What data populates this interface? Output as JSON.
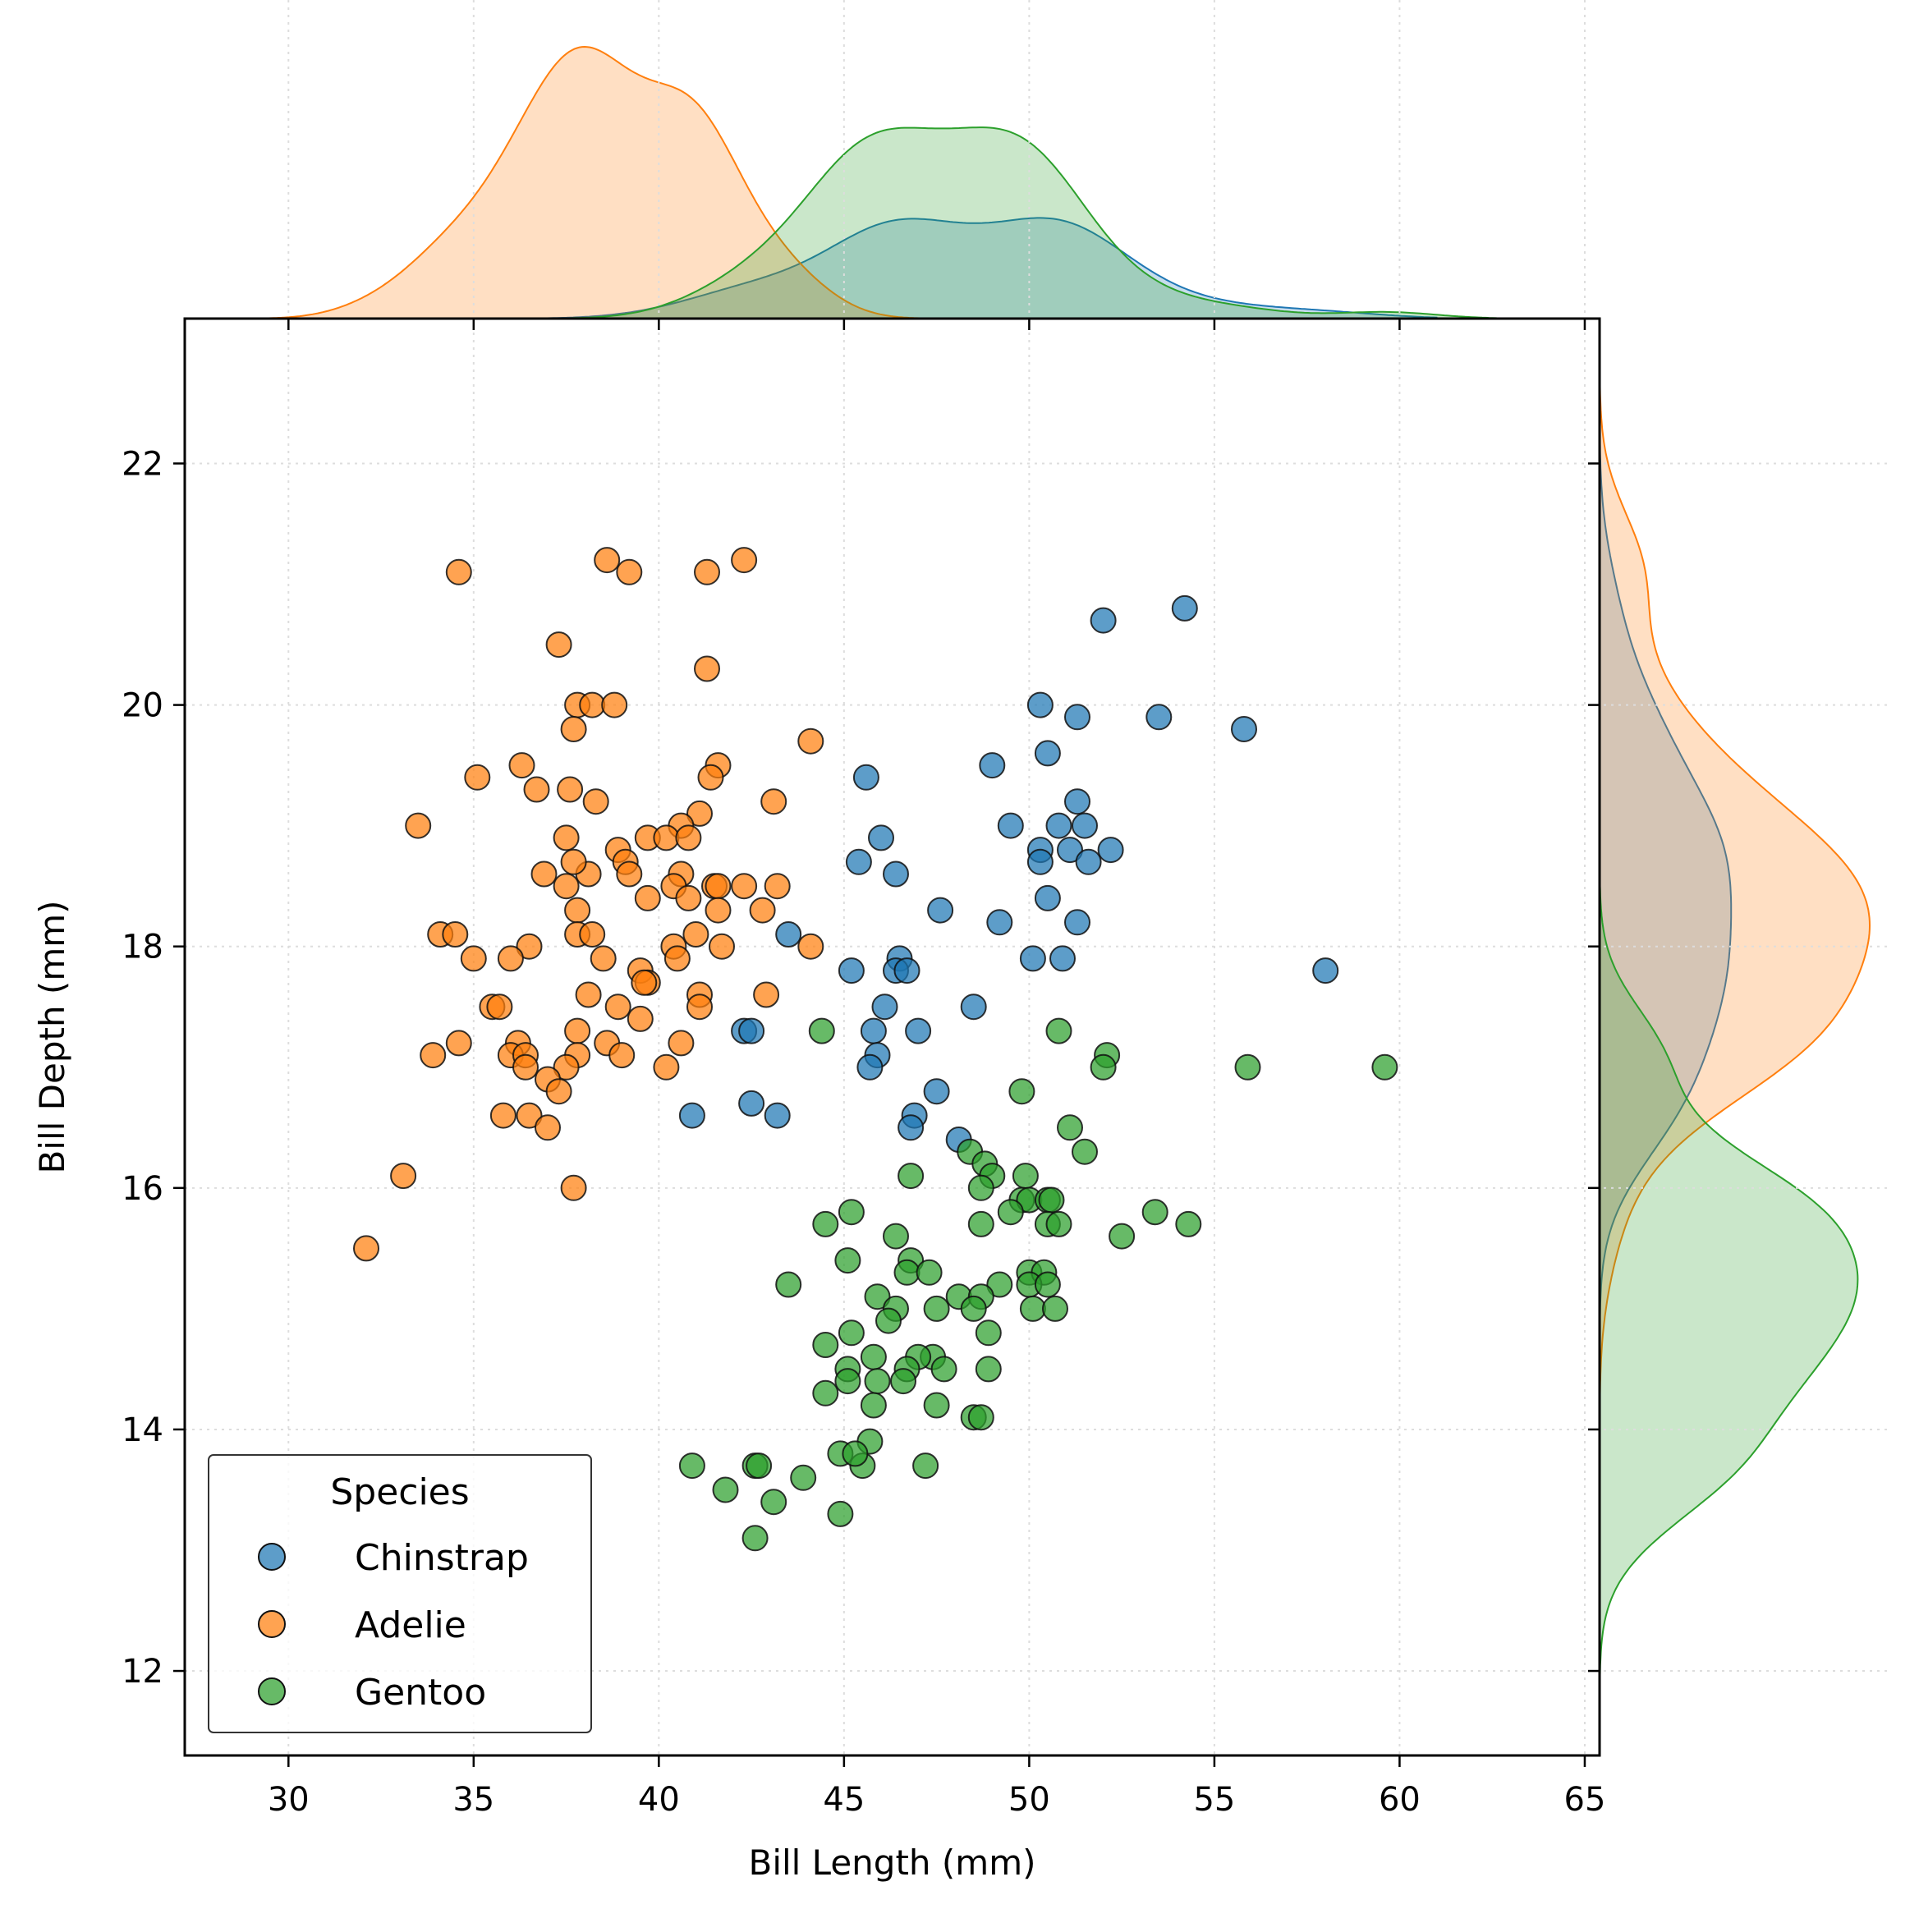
{
  "chart_data": {
    "type": "scatter",
    "subtype": "jointplot-with-marginal-kde",
    "title": "",
    "xlabel": "Bill Length (mm)",
    "ylabel": "Bill Depth (mm)",
    "xlim": [
      27.2,
      65.4
    ],
    "ylim": [
      11.3,
      23.2
    ],
    "xticks": [
      30,
      35,
      40,
      45,
      50,
      55,
      60,
      65
    ],
    "yticks": [
      12,
      14,
      16,
      18,
      20,
      22
    ],
    "xtick_labels": [
      "30",
      "35",
      "40",
      "45",
      "50",
      "55",
      "60",
      "65"
    ],
    "ytick_labels": [
      "12",
      "14",
      "16",
      "18",
      "20",
      "22"
    ],
    "grid": true,
    "legend": {
      "title": "Species",
      "placement": "lower-left"
    },
    "marginals": "kde (filled, per species)",
    "series": [
      {
        "name": "Chinstrap",
        "color": "#1f77b4",
        "points": [
          [
            52.0,
            20.7
          ],
          [
            54.2,
            20.8
          ],
          [
            50.3,
            20.0
          ],
          [
            51.3,
            19.9
          ],
          [
            53.5,
            19.9
          ],
          [
            55.8,
            19.8
          ],
          [
            50.5,
            19.6
          ],
          [
            49.0,
            19.5
          ],
          [
            45.6,
            19.4
          ],
          [
            51.3,
            19.2
          ],
          [
            49.5,
            19.0
          ],
          [
            50.8,
            19.0
          ],
          [
            51.5,
            19.0
          ],
          [
            46.0,
            18.9
          ],
          [
            50.3,
            18.8
          ],
          [
            51.1,
            18.8
          ],
          [
            52.2,
            18.8
          ],
          [
            45.4,
            18.7
          ],
          [
            50.3,
            18.7
          ],
          [
            51.6,
            18.7
          ],
          [
            46.4,
            18.6
          ],
          [
            50.5,
            18.4
          ],
          [
            47.6,
            18.3
          ],
          [
            49.2,
            18.2
          ],
          [
            51.3,
            18.2
          ],
          [
            43.5,
            18.1
          ],
          [
            50.1,
            17.9
          ],
          [
            50.9,
            17.9
          ],
          [
            46.5,
            17.9
          ],
          [
            45.2,
            17.8
          ],
          [
            46.4,
            17.8
          ],
          [
            46.7,
            17.8
          ],
          [
            58.0,
            17.8
          ],
          [
            46.1,
            17.5
          ],
          [
            48.5,
            17.5
          ],
          [
            42.3,
            17.3
          ],
          [
            42.5,
            17.3
          ],
          [
            45.8,
            17.3
          ],
          [
            47.0,
            17.3
          ],
          [
            45.9,
            17.1
          ],
          [
            45.7,
            17.0
          ],
          [
            47.5,
            16.8
          ],
          [
            42.5,
            16.7
          ],
          [
            40.9,
            16.6
          ],
          [
            43.2,
            16.6
          ],
          [
            46.9,
            16.6
          ],
          [
            46.8,
            16.5
          ],
          [
            48.1,
            16.4
          ]
        ]
      },
      {
        "name": "Adelie",
        "color": "#ff7f0e",
        "points": [
          [
            34.6,
            21.1
          ],
          [
            38.6,
            21.2
          ],
          [
            39.2,
            21.1
          ],
          [
            41.3,
            21.1
          ],
          [
            42.3,
            21.2
          ],
          [
            37.3,
            20.5
          ],
          [
            41.3,
            20.3
          ],
          [
            37.8,
            20.0
          ],
          [
            38.2,
            20.0
          ],
          [
            38.8,
            20.0
          ],
          [
            37.7,
            19.8
          ],
          [
            44.1,
            19.7
          ],
          [
            41.6,
            19.5
          ],
          [
            36.3,
            19.5
          ],
          [
            35.1,
            19.4
          ],
          [
            41.4,
            19.4
          ],
          [
            36.7,
            19.3
          ],
          [
            37.6,
            19.3
          ],
          [
            43.1,
            19.2
          ],
          [
            38.3,
            19.2
          ],
          [
            33.5,
            19.0
          ],
          [
            41.1,
            19.1
          ],
          [
            40.6,
            19.0
          ],
          [
            38.9,
            18.8
          ],
          [
            39.7,
            18.9
          ],
          [
            40.2,
            18.9
          ],
          [
            40.8,
            18.9
          ],
          [
            39.1,
            18.7
          ],
          [
            36.9,
            18.6
          ],
          [
            38.1,
            18.6
          ],
          [
            40.6,
            18.6
          ],
          [
            39.2,
            18.6
          ],
          [
            37.5,
            18.9
          ],
          [
            37.7,
            18.7
          ],
          [
            37.5,
            18.5
          ],
          [
            40.4,
            18.5
          ],
          [
            41.5,
            18.5
          ],
          [
            41.6,
            18.5
          ],
          [
            42.3,
            18.5
          ],
          [
            43.2,
            18.5
          ],
          [
            40.8,
            18.4
          ],
          [
            39.7,
            18.4
          ],
          [
            37.8,
            18.3
          ],
          [
            41.6,
            18.3
          ],
          [
            42.8,
            18.3
          ],
          [
            34.1,
            18.1
          ],
          [
            34.5,
            18.1
          ],
          [
            37.8,
            18.1
          ],
          [
            38.2,
            18.1
          ],
          [
            41.0,
            18.1
          ],
          [
            36.5,
            18.0
          ],
          [
            40.4,
            18.0
          ],
          [
            44.1,
            18.0
          ],
          [
            36.0,
            17.9
          ],
          [
            38.5,
            17.9
          ],
          [
            40.5,
            17.9
          ],
          [
            35.0,
            17.9
          ],
          [
            41.7,
            18.0
          ],
          [
            39.5,
            17.8
          ],
          [
            39.7,
            17.7
          ],
          [
            39.6,
            17.7
          ],
          [
            38.1,
            17.6
          ],
          [
            41.1,
            17.6
          ],
          [
            42.9,
            17.6
          ],
          [
            35.5,
            17.5
          ],
          [
            35.7,
            17.5
          ],
          [
            38.9,
            17.5
          ],
          [
            41.1,
            17.5
          ],
          [
            39.5,
            17.4
          ],
          [
            37.8,
            17.3
          ],
          [
            34.6,
            17.2
          ],
          [
            36.2,
            17.2
          ],
          [
            38.6,
            17.2
          ],
          [
            40.6,
            17.2
          ],
          [
            33.9,
            17.1
          ],
          [
            36.0,
            17.1
          ],
          [
            36.4,
            17.1
          ],
          [
            37.8,
            17.1
          ],
          [
            39.0,
            17.1
          ],
          [
            36.4,
            17.0
          ],
          [
            37.5,
            17.0
          ],
          [
            40.2,
            17.0
          ],
          [
            37.0,
            16.9
          ],
          [
            37.3,
            16.8
          ],
          [
            35.8,
            16.6
          ],
          [
            36.5,
            16.6
          ],
          [
            37.0,
            16.5
          ],
          [
            33.1,
            16.1
          ],
          [
            37.7,
            16.0
          ],
          [
            32.1,
            15.5
          ]
        ]
      },
      {
        "name": "Gentoo",
        "color": "#2ca02c",
        "points": [
          [
            44.4,
            17.3
          ],
          [
            50.8,
            17.3
          ],
          [
            55.9,
            17.0
          ],
          [
            59.6,
            17.0
          ],
          [
            52.1,
            17.1
          ],
          [
            52.0,
            17.0
          ],
          [
            49.8,
            16.8
          ],
          [
            51.1,
            16.5
          ],
          [
            48.4,
            16.3
          ],
          [
            51.5,
            16.3
          ],
          [
            48.8,
            16.2
          ],
          [
            49.0,
            16.1
          ],
          [
            46.8,
            16.1
          ],
          [
            49.9,
            16.1
          ],
          [
            48.7,
            16.0
          ],
          [
            49.8,
            15.9
          ],
          [
            50.0,
            15.9
          ],
          [
            50.5,
            15.9
          ],
          [
            50.6,
            15.9
          ],
          [
            49.5,
            15.8
          ],
          [
            53.4,
            15.8
          ],
          [
            45.2,
            15.8
          ],
          [
            44.5,
            15.7
          ],
          [
            48.7,
            15.7
          ],
          [
            50.5,
            15.7
          ],
          [
            50.8,
            15.7
          ],
          [
            54.3,
            15.7
          ],
          [
            46.4,
            15.6
          ],
          [
            52.5,
            15.6
          ],
          [
            45.1,
            15.4
          ],
          [
            46.8,
            15.4
          ],
          [
            46.7,
            15.3
          ],
          [
            47.3,
            15.3
          ],
          [
            50.0,
            15.3
          ],
          [
            50.4,
            15.3
          ],
          [
            43.5,
            15.2
          ],
          [
            49.2,
            15.2
          ],
          [
            50.0,
            15.2
          ],
          [
            50.5,
            15.2
          ],
          [
            45.9,
            15.1
          ],
          [
            48.1,
            15.1
          ],
          [
            48.7,
            15.1
          ],
          [
            46.4,
            15.0
          ],
          [
            47.5,
            15.0
          ],
          [
            48.5,
            15.0
          ],
          [
            50.1,
            15.0
          ],
          [
            50.7,
            15.0
          ],
          [
            46.2,
            14.9
          ],
          [
            45.2,
            14.8
          ],
          [
            48.9,
            14.8
          ],
          [
            44.5,
            14.7
          ],
          [
            47.4,
            14.6
          ],
          [
            45.8,
            14.6
          ],
          [
            47.0,
            14.6
          ],
          [
            45.1,
            14.5
          ],
          [
            46.7,
            14.5
          ],
          [
            47.7,
            14.5
          ],
          [
            48.9,
            14.5
          ],
          [
            45.9,
            14.4
          ],
          [
            45.1,
            14.4
          ],
          [
            46.6,
            14.4
          ],
          [
            44.5,
            14.3
          ],
          [
            45.8,
            14.2
          ],
          [
            47.5,
            14.2
          ],
          [
            48.5,
            14.1
          ],
          [
            48.7,
            14.1
          ],
          [
            45.7,
            13.9
          ],
          [
            40.9,
            13.7
          ],
          [
            42.6,
            13.7
          ],
          [
            42.7,
            13.7
          ],
          [
            45.5,
            13.7
          ],
          [
            47.2,
            13.7
          ],
          [
            44.9,
            13.8
          ],
          [
            45.3,
            13.8
          ],
          [
            43.9,
            13.6
          ],
          [
            41.8,
            13.5
          ],
          [
            43.1,
            13.4
          ],
          [
            44.9,
            13.3
          ],
          [
            42.6,
            13.1
          ]
        ]
      }
    ]
  }
}
